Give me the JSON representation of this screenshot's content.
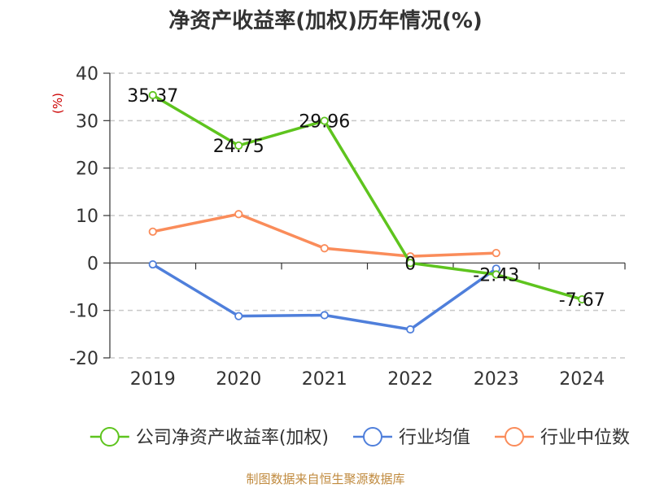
{
  "chart_data": {
    "type": "line",
    "title": "净资产收益率(加权)历年情况(%)",
    "ylabel": "(%)",
    "xlabel": "",
    "categories": [
      "2019",
      "2020",
      "2021",
      "2022",
      "2023",
      "2024"
    ],
    "ylim": [
      -20,
      40
    ],
    "yticks": [
      40,
      30,
      20,
      10,
      0,
      -10,
      -20
    ],
    "grid": true,
    "legend_position": "bottom",
    "series": [
      {
        "name": "公司净资产收益率(加权)",
        "color": "#5ec41e",
        "values": [
          35.37,
          24.75,
          29.96,
          0,
          -2.43,
          -7.67
        ],
        "labels": [
          "35.37",
          "24.75",
          "29.96",
          "0",
          "-2.43",
          "-7.67"
        ]
      },
      {
        "name": "行业均值",
        "color": "#4f7fdb",
        "values": [
          -0.3,
          -11.2,
          -11.0,
          -14.0,
          -1.2,
          null
        ]
      },
      {
        "name": "行业中位数",
        "color": "#fa8c5a",
        "values": [
          6.6,
          10.3,
          3.1,
          1.4,
          2.1,
          null
        ]
      }
    ],
    "source": "制图数据来自恒生聚源数据库"
  }
}
